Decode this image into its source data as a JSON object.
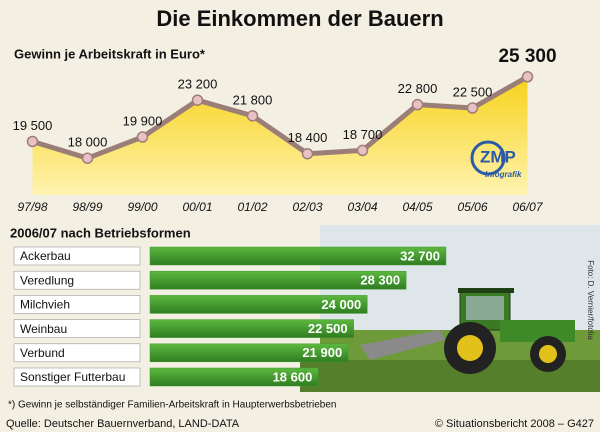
{
  "title": "Die Einkommen der Bauern",
  "chart_data": [
    {
      "type": "area",
      "subtitle": "Gewinn je Arbeitskraft in Euro*",
      "categories": [
        "97/98",
        "98/99",
        "99/00",
        "00/01",
        "01/02",
        "02/03",
        "03/04",
        "04/05",
        "05/06",
        "06/07"
      ],
      "values": [
        19500,
        18000,
        19900,
        23200,
        21800,
        18400,
        18700,
        22800,
        22500,
        25300
      ],
      "value_labels": [
        "19 500",
        "18 000",
        "19 900",
        "23 200",
        "21 800",
        "18 400",
        "18 700",
        "22 800",
        "22 500",
        "25 300"
      ],
      "ylim": [
        14700,
        28600
      ],
      "color": "#f2c200",
      "line_color": "#9c7e78"
    },
    {
      "type": "hbar",
      "title": "2006/07 nach Betriebsformen",
      "categories": [
        "Ackerbau",
        "Veredlung",
        "Milchvieh",
        "Weinbau",
        "Verbund",
        "Sonstiger Futterbau"
      ],
      "values": [
        32700,
        28300,
        24000,
        22500,
        21900,
        18600
      ],
      "value_labels": [
        "32 700",
        "28 300",
        "24 000",
        "22 500",
        "21 900",
        "18 600"
      ],
      "xlim": [
        0,
        40000
      ],
      "color": "#3d9a2c"
    }
  ],
  "logo": {
    "name": "ZMP",
    "subtitle": "Infografik"
  },
  "photo_credit": "Foto: D. Vernier/fotolia",
  "footnote": "*) Gewinn je selbständiger Familien-Arbeitskraft in Haupterwerbsbetrieben",
  "source": "Quelle: Deutscher Bauernverband, LAND-DATA",
  "copyright": "© Situationsbericht 2008 – G427"
}
